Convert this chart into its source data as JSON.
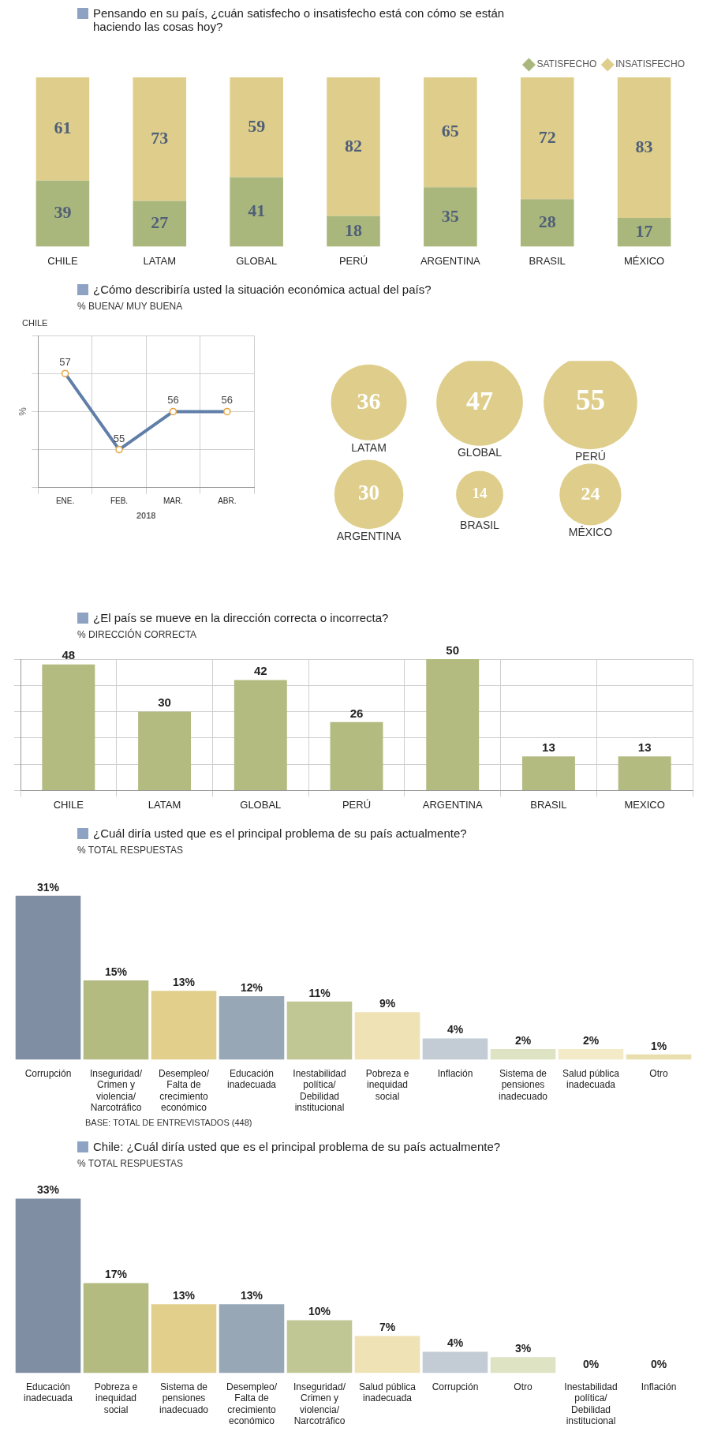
{
  "chart_data": [
    {
      "type": "bar",
      "stacked": true,
      "title": "Pensando en su país, ¿cuán satisfecho o insatisfecho está con cómo se están haciendo las cosas hoy?",
      "categories": [
        "CHILE",
        "LATAM",
        "GLOBAL",
        "PERÚ",
        "ARGENTINA",
        "BRASIL",
        "MÉXICO"
      ],
      "series": [
        {
          "name": "SATISFECHO",
          "color": "#aab77c",
          "values": [
            39,
            27,
            41,
            18,
            35,
            28,
            17
          ]
        },
        {
          "name": "INSATISFECHO",
          "color": "#dfce8b",
          "values": [
            61,
            73,
            59,
            82,
            65,
            72,
            83
          ]
        }
      ],
      "data_labels": true,
      "legend": "top right",
      "tick_labels": "x"
    },
    {
      "type": "line",
      "title": "¿Cómo describiría usted la situación económica actual del país?",
      "subtitle": "% BUENA/ MUY BUENA",
      "annotations": [
        "CHILE"
      ],
      "ylabel": "%",
      "xlabel": "2018",
      "categories": [
        "ENE.",
        "FEB.",
        "MAR.",
        "ABR."
      ],
      "series": [
        {
          "color": "#5f7ea8",
          "values": [
            57,
            55,
            56,
            56
          ]
        }
      ],
      "ylim": [
        54,
        58
      ],
      "yticks": [
        {
          "value": 54,
          "label": null
        },
        {
          "value": 55,
          "label": null
        },
        {
          "value": 56,
          "label": null
        },
        {
          "value": 57,
          "label": null
        },
        {
          "value": 58,
          "label": null
        }
      ],
      "grid": true,
      "marker": "circle",
      "data_labels": true,
      "tick_labels": "x"
    },
    {
      "type": "other",
      "categories": [
        "LATAM",
        "GLOBAL",
        "PERÚ",
        "ARGENTINA",
        "BRASIL",
        "MÉXICO"
      ],
      "values": [
        36,
        47,
        55,
        30,
        14,
        24
      ],
      "color": "#dfce8b",
      "data_labels": true
    },
    {
      "type": "bar",
      "title": "¿El país se mueve en la dirección correcta o incorrecta?",
      "subtitle": "% DIRECCIÓN CORRECTA",
      "categories": [
        "CHILE",
        "LATAM",
        "GLOBAL",
        "PERÚ",
        "ARGENTINA",
        "BRASIL",
        "MEXICO"
      ],
      "values": [
        48,
        30,
        42,
        26,
        50,
        13,
        13
      ],
      "color": "#b3bb80",
      "ylim": [
        0,
        50
      ],
      "yticks": [
        {
          "value": 0,
          "label": null
        },
        {
          "value": 10,
          "label": null
        },
        {
          "value": 20,
          "label": null
        },
        {
          "value": 30,
          "label": null
        },
        {
          "value": 40,
          "label": null
        },
        {
          "value": 50,
          "label": null
        }
      ],
      "grid": true,
      "data_labels": true,
      "tick_labels": "x"
    },
    {
      "type": "bar",
      "title": "¿Cuál diría usted que es el principal problema de su país actualmente?",
      "subtitle": "% TOTAL RESPUESTAS",
      "categories": [
        "Corrupción",
        "Inseguridad/Crimen y violencia/Narcotráfico",
        "Desempleo/Falta de crecimiento económico",
        "Educación inadecuada",
        "Inestabilidad política/ Debilidad institucional",
        "Pobreza e inequidad social",
        "Inflación",
        "Sistema de pensiones inadecuado",
        "Salud pública inadecuada",
        "Otro"
      ],
      "values": [
        31,
        15,
        13,
        12,
        11,
        9,
        4,
        2,
        2,
        1
      ],
      "colors": [
        "#7f8ea3",
        "#b3bb80",
        "#e2cf8c",
        "#98a7b6",
        "#c0c795",
        "#efe2b5",
        "#c3ccd5",
        "#dde3c3",
        "#f3eac8",
        "#e9dfae"
      ],
      "value_labels": [
        "31%",
        "15%",
        "13%",
        "12%",
        "11%",
        "9%",
        "4%",
        "2%",
        "2%",
        "1%"
      ],
      "annotations": [
        "BASE: TOTAL DE ENTREVISTADOS (448)"
      ],
      "tick_labels": "x"
    },
    {
      "type": "bar",
      "title": "Chile: ¿Cuál diría usted que es el principal problema de su país actualmente?",
      "subtitle": "% TOTAL RESPUESTAS",
      "categories": [
        "Educación inadecuada",
        "Pobreza e inequidad social",
        "Sistema de pensiones inadecuado",
        "Desempleo/Falta de crecimiento económico",
        "Inseguridad/Crimen y violencia/Narcotráfico",
        "Salud pública inadecuada",
        "Corrupción",
        "Otro",
        "Inestabilidad política/ Debilidad institucional",
        "Inflación"
      ],
      "values": [
        33,
        17,
        13,
        13,
        10,
        7,
        4,
        3,
        0,
        0
      ],
      "colors": [
        "#7f8ea3",
        "#b3bb80",
        "#e2cf8c",
        "#98a7b6",
        "#c0c795",
        "#efe2b5",
        "#c3ccd5",
        "#dde3c3",
        "#f3eac8",
        "#e9dfae"
      ],
      "value_labels": [
        "33%",
        "17%",
        "13%",
        "13%",
        "10%",
        "7%",
        "4%",
        "3%",
        "0%",
        "0%"
      ],
      "tick_labels": "x"
    }
  ]
}
